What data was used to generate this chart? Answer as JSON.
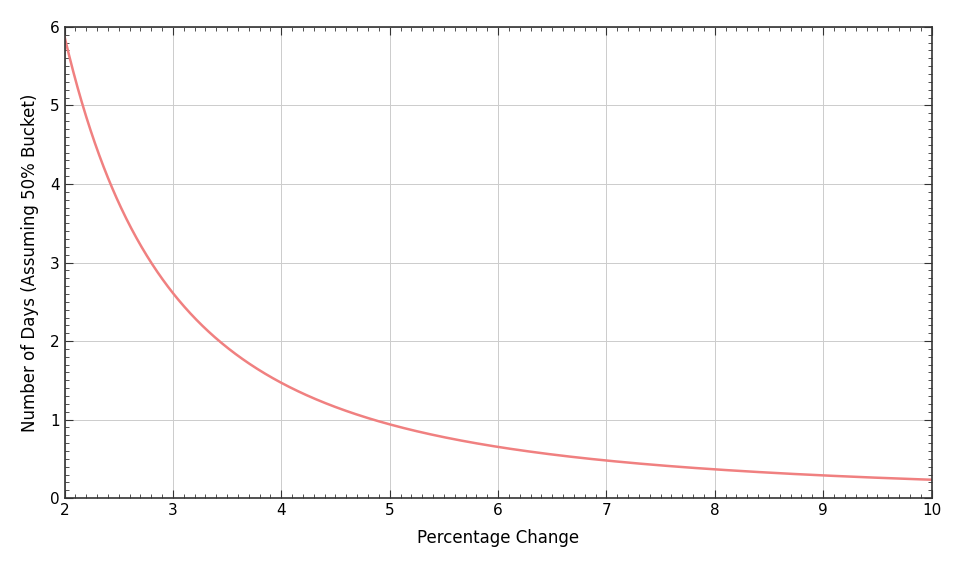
{
  "title": "",
  "xlabel": "Percentage Change",
  "ylabel": "Number of Days (Assuming 50% Bucket)",
  "xlim": [
    2,
    10
  ],
  "ylim": [
    0,
    6
  ],
  "xticks": [
    2,
    3,
    4,
    5,
    6,
    7,
    8,
    9,
    10
  ],
  "yticks": [
    0,
    1,
    2,
    3,
    4,
    5,
    6
  ],
  "line_color": "#f08080",
  "background_color": "#ffffff",
  "grid_color": "#cccccc",
  "spine_color": "#333333",
  "outer_border_color": "#336633",
  "xlabel_fontsize": 12,
  "ylabel_fontsize": 12,
  "tick_fontsize": 11,
  "x_start": 2.0,
  "x_end": 10.0,
  "scale_factor": 23.5
}
